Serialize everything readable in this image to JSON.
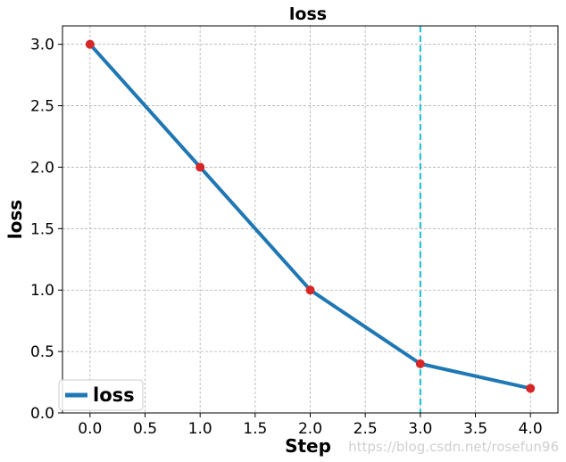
{
  "chart_data": {
    "type": "line",
    "title": "loss",
    "xlabel": "Step",
    "ylabel": "loss",
    "x": [
      0,
      1,
      2,
      3,
      4
    ],
    "series": [
      {
        "name": "loss",
        "values": [
          3.0,
          2.0,
          1.0,
          0.4,
          0.2
        ],
        "color": "#1f77b4",
        "marker_color": "#d62728"
      }
    ],
    "xlim": [
      -0.25,
      4.25
    ],
    "ylim": [
      0.0,
      3.15
    ],
    "xticks": [
      "0.0",
      "0.5",
      "1.0",
      "1.5",
      "2.0",
      "2.5",
      "3.0",
      "3.5",
      "4.0"
    ],
    "yticks": [
      "0.0",
      "0.5",
      "1.0",
      "1.5",
      "2.0",
      "2.5",
      "3.0"
    ],
    "vline": {
      "x": 3.0,
      "color": "#17becf",
      "style": "dashed"
    },
    "grid": true,
    "legend_position": "lower-left"
  },
  "watermark": "https://blog.csdn.net/rosefun96"
}
